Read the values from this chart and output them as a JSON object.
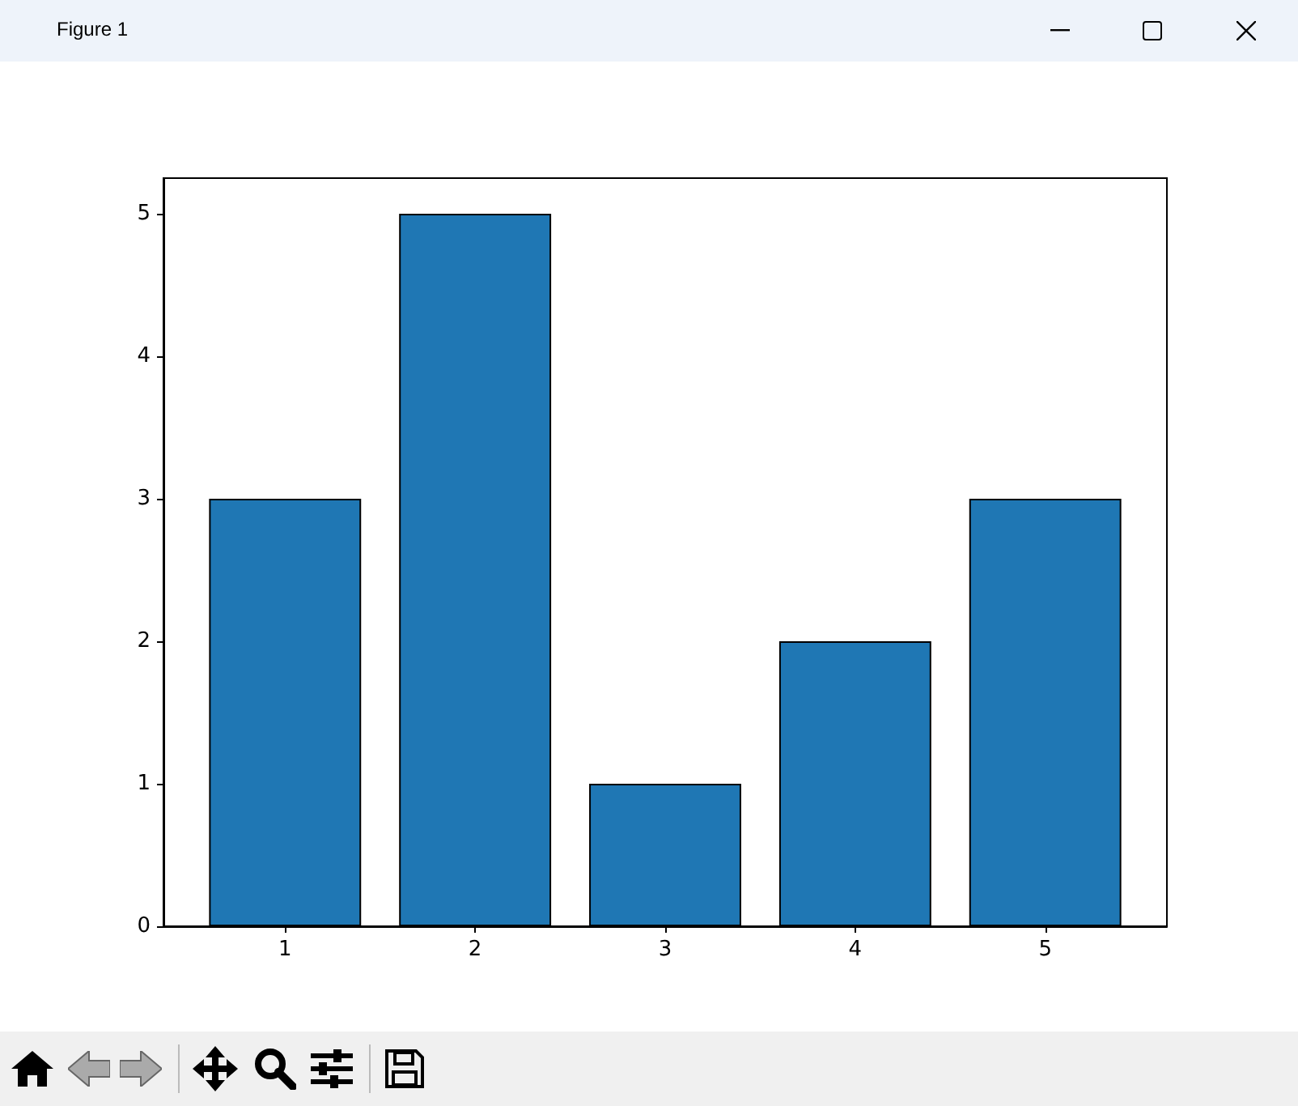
{
  "chart_data": {
    "type": "bar",
    "annotations": [
      "Figure 1"
    ],
    "x": [
      1,
      2,
      3,
      4,
      5
    ],
    "values": [
      3,
      5,
      1,
      2,
      3
    ],
    "color": "#1f77b4",
    "xlim": [
      0.36,
      5.64
    ],
    "xticks": [
      1,
      2,
      3,
      4,
      5
    ],
    "ylim": [
      0,
      5.25
    ],
    "yticks": [
      0,
      1,
      2,
      3,
      4,
      5
    ]
  }
}
